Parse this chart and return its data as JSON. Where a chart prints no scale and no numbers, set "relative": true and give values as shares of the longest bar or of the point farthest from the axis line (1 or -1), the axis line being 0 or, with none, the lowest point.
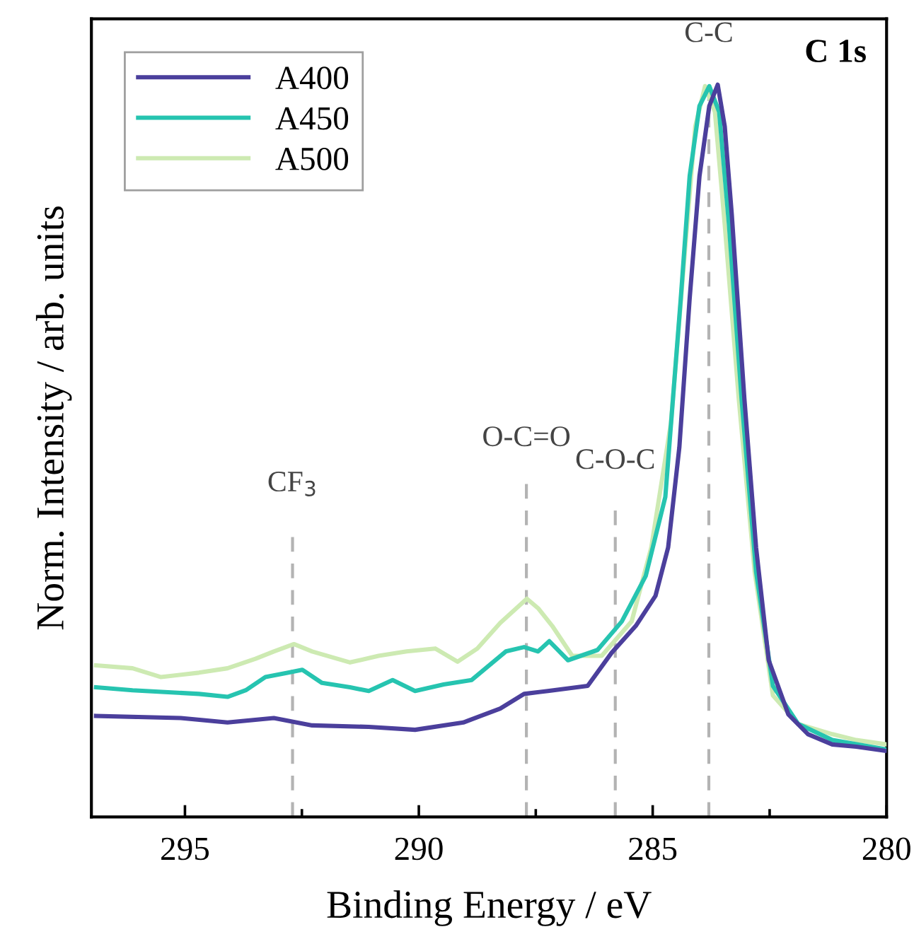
{
  "chart_data": {
    "type": "line",
    "relative": true,
    "xlabel": "Binding Energy / eV",
    "ylabel": "Norm. Intensity / arb. units",
    "annotations": [
      "C 1s"
    ],
    "xlim": [
      297,
      280
    ],
    "xticks": [
      295,
      {
        "value": 292.5,
        "label": null
      },
      290,
      {
        "value": 287.5,
        "label": null
      },
      285,
      {
        "value": 282.5,
        "label": null
      },
      280
    ],
    "tick_labels": "x",
    "grid": false,
    "legend": "top left",
    "line_style": "solid",
    "marker": "none",
    "ref_lines": [
      {
        "axis": "x",
        "value": 292.7,
        "label": "CF$_{3}$",
        "color": "#b3b3b3",
        "line_style": "dashed"
      },
      {
        "axis": "x",
        "value": 287.7,
        "label": "O-C=O",
        "color": "#b3b3b3",
        "line_style": "dashed"
      },
      {
        "axis": "x",
        "value": 285.8,
        "label": "C-O-C",
        "color": "#b3b3b3",
        "line_style": "dashed"
      },
      {
        "axis": "x",
        "value": 283.8,
        "label": "C-C",
        "color": "#b3b3b3",
        "line_style": "dashed"
      }
    ],
    "series": [
      {
        "name": "A400",
        "color": "#4b3f9c",
        "x": [
          296.9,
          295.09,
          294.09,
          293.1,
          292.28,
          291.07,
          290.08,
          289.05,
          288.26,
          287.75,
          287.24,
          286.39,
          285.88,
          285.36,
          284.94,
          284.67,
          284.43,
          284.21,
          284.0,
          283.79,
          283.61,
          283.46,
          283.31,
          283.04,
          282.79,
          282.52,
          282.1,
          281.68,
          281.16,
          280.65,
          280.0
        ],
        "values": [
          0.138,
          0.135,
          0.129,
          0.135,
          0.125,
          0.123,
          0.119,
          0.129,
          0.148,
          0.168,
          0.172,
          0.179,
          0.224,
          0.261,
          0.302,
          0.368,
          0.505,
          0.708,
          0.875,
          0.971,
          1.0,
          0.943,
          0.823,
          0.571,
          0.368,
          0.214,
          0.14,
          0.113,
          0.099,
          0.096,
          0.09
        ]
      },
      {
        "name": "A450",
        "color": "#26c4b0",
        "x": [
          296.9,
          296.12,
          294.7,
          294.09,
          293.7,
          293.28,
          292.79,
          292.49,
          292.07,
          291.47,
          291.07,
          290.56,
          290.08,
          289.47,
          288.87,
          288.14,
          287.75,
          287.45,
          287.21,
          286.81,
          286.18,
          285.66,
          285.15,
          284.73,
          284.4,
          284.21,
          284.0,
          283.79,
          283.58,
          283.37,
          283.1,
          282.79,
          282.43,
          281.89,
          281.16,
          280.0
        ],
        "values": [
          0.177,
          0.173,
          0.168,
          0.164,
          0.173,
          0.191,
          0.197,
          0.201,
          0.183,
          0.177,
          0.172,
          0.187,
          0.172,
          0.181,
          0.187,
          0.226,
          0.232,
          0.226,
          0.24,
          0.214,
          0.228,
          0.267,
          0.329,
          0.437,
          0.708,
          0.875,
          0.971,
          0.998,
          0.963,
          0.809,
          0.571,
          0.335,
          0.179,
          0.127,
          0.105,
          0.092
        ]
      },
      {
        "name": "A500",
        "color": "#cdeab2",
        "x": [
          296.9,
          296.12,
          295.51,
          294.7,
          294.09,
          293.49,
          293.1,
          292.67,
          292.28,
          291.47,
          290.86,
          290.26,
          289.65,
          289.17,
          288.75,
          288.26,
          287.69,
          287.45,
          287.15,
          286.72,
          286.09,
          285.45,
          285.03,
          284.61,
          284.31,
          284.09,
          283.88,
          283.67,
          283.46,
          283.16,
          282.82,
          282.43,
          281.89,
          281.16,
          280.65,
          280.0
        ],
        "values": [
          0.207,
          0.203,
          0.191,
          0.197,
          0.203,
          0.216,
          0.226,
          0.236,
          0.226,
          0.211,
          0.22,
          0.226,
          0.23,
          0.212,
          0.23,
          0.265,
          0.298,
          0.285,
          0.261,
          0.22,
          0.22,
          0.267,
          0.368,
          0.538,
          0.774,
          0.943,
          0.998,
          0.963,
          0.809,
          0.571,
          0.335,
          0.166,
          0.127,
          0.113,
          0.105,
          0.099
        ]
      }
    ]
  }
}
